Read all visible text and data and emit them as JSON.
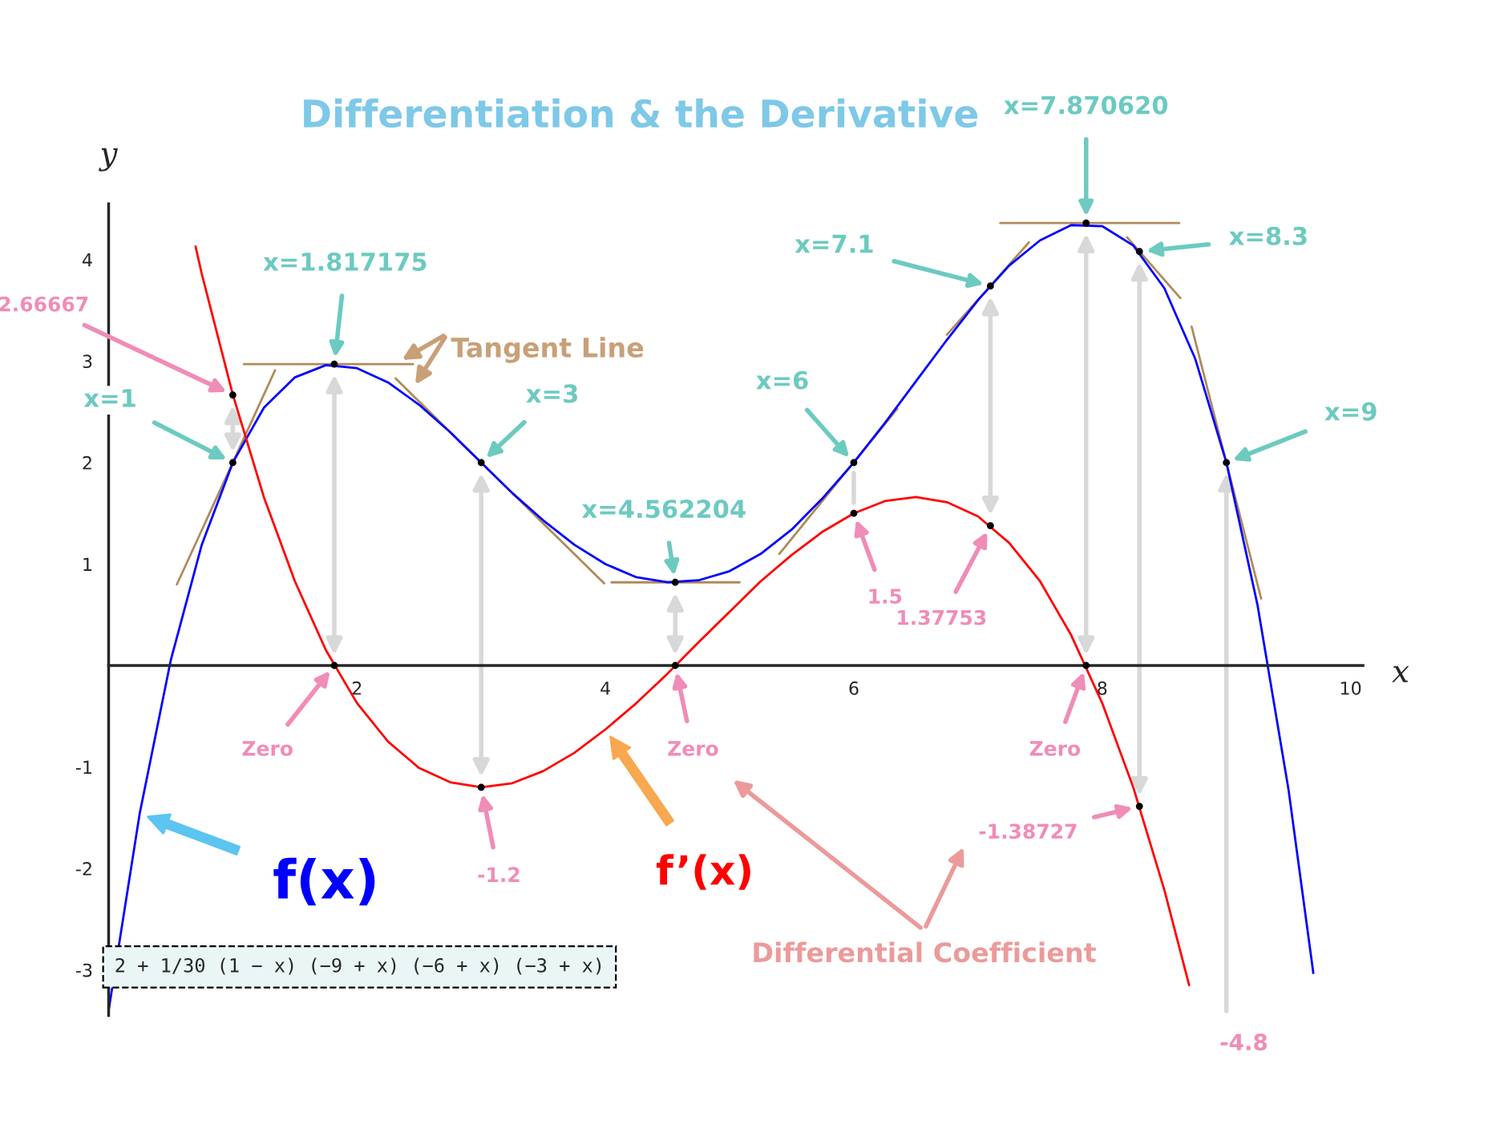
{
  "chart_data": {
    "type": "line",
    "title": "Differentiation & the Derivative",
    "xlabel": "x",
    "ylabel": "y",
    "xlim": [
      0,
      10.1
    ],
    "ylim": [
      -3.45,
      4.55
    ],
    "xticks": [
      2,
      4,
      6,
      8,
      10
    ],
    "yticks": [
      -3,
      -2,
      -1,
      1,
      2,
      3,
      4
    ],
    "grid": false,
    "legend": false,
    "series": [
      {
        "name": "f(x)",
        "color": "#0000ff",
        "x": [
          0,
          0.25,
          0.5,
          0.75,
          1,
          1.25,
          1.5,
          1.75,
          2,
          2.25,
          2.5,
          2.75,
          3,
          3.25,
          3.5,
          3.75,
          4,
          4.25,
          4.5,
          4.75,
          5,
          5.25,
          5.5,
          5.75,
          6,
          6.25,
          6.5,
          6.75,
          7,
          7.25,
          7.5,
          7.75,
          8,
          8.25,
          8.5,
          8.75,
          9,
          9.25,
          9.5,
          9.7
        ],
        "values": [
          -3.4,
          -1.46,
          0.05,
          1.19,
          2,
          2.54,
          2.84,
          2.96,
          2.93,
          2.79,
          2.57,
          2.3,
          2,
          1.7,
          1.43,
          1.19,
          1,
          0.87,
          0.82,
          0.84,
          0.93,
          1.1,
          1.34,
          1.65,
          2,
          2.39,
          2.8,
          3.21,
          3.6,
          3.94,
          4.19,
          4.34,
          4.33,
          4.14,
          3.72,
          3.02,
          2,
          0.6,
          -1.22,
          -3.03
        ]
      },
      {
        "name": "f’(x)",
        "color": "#ff0000",
        "x": [
          0.7,
          0.75,
          1,
          1.25,
          1.5,
          1.75,
          2,
          2.25,
          2.5,
          2.75,
          3,
          3.25,
          3.5,
          3.75,
          4,
          4.25,
          4.5,
          4.75,
          5,
          5.25,
          5.5,
          5.75,
          6,
          6.25,
          6.5,
          6.75,
          7,
          7.25,
          7.5,
          7.75,
          8,
          8.25,
          8.5,
          8.7
        ],
        "values": [
          4.13,
          3.86,
          2.67,
          1.66,
          0.83,
          0.15,
          -0.37,
          -0.75,
          -1.01,
          -1.15,
          -1.2,
          -1.16,
          -1.04,
          -0.86,
          -0.63,
          -0.37,
          -0.08,
          0.23,
          0.53,
          0.83,
          1.09,
          1.32,
          1.5,
          1.62,
          1.66,
          1.61,
          1.47,
          1.21,
          0.83,
          0.3,
          -0.37,
          -1.2,
          -2.21,
          -3.15
        ]
      },
      {
        "color": "#b08a5a",
        "x": [
          0.55,
          1.34
        ],
        "values": [
          0.8,
          2.91
        ]
      },
      {
        "color": "#b08a5a",
        "x": [
          1.09,
          2.45
        ],
        "values": [
          2.97,
          2.97
        ]
      },
      {
        "color": "#b08a5a",
        "x": [
          2.31,
          3.99
        ],
        "values": [
          2.83,
          0.81
        ]
      },
      {
        "color": "#b08a5a",
        "x": [
          4.05,
          5.08
        ],
        "values": [
          0.82,
          0.82
        ]
      },
      {
        "color": "#b08a5a",
        "x": [
          5.4,
          6.35
        ],
        "values": [
          1.1,
          2.53
        ]
      },
      {
        "color": "#b08a5a",
        "x": [
          6.75,
          7.41
        ],
        "values": [
          3.26,
          4.17
        ]
      },
      {
        "color": "#b08a5a",
        "x": [
          7.18,
          8.62
        ],
        "values": [
          4.36,
          4.36
        ]
      },
      {
        "color": "#b08a5a",
        "x": [
          8.2,
          8.63
        ],
        "values": [
          4.22,
          3.62
        ]
      },
      {
        "color": "#b08a5a",
        "x": [
          8.72,
          9.28
        ],
        "values": [
          3.34,
          0.66
        ]
      },
      {
        "type": "scatter",
        "color": "#000000",
        "marker": "circle",
        "x": [
          1,
          1.817175,
          3,
          4.562204,
          6,
          7.1,
          7.87062,
          8.3,
          9
        ],
        "values": [
          2,
          2.97,
          2,
          0.82,
          2,
          3.74,
          4.36,
          4.08,
          2
        ]
      },
      {
        "type": "scatter",
        "color": "#000000",
        "marker": "circle",
        "x": [
          1,
          1.817175,
          3,
          4.562204,
          6,
          7.1,
          7.87062,
          8.3
        ],
        "values": [
          2.66667,
          0,
          -1.2,
          0,
          1.5,
          1.37753,
          0,
          -1.38727
        ]
      }
    ],
    "annotations": [
      {
        "text": "x=1",
        "x": 1,
        "y": 2
      },
      {
        "text": "2.66667",
        "x": 1,
        "y": 2.66667
      },
      {
        "text": "x=1.817175",
        "x": 1.817175,
        "y": 2.97
      },
      {
        "text": "Zero",
        "x": 1.817175,
        "y": 0
      },
      {
        "text": "x=3",
        "x": 3,
        "y": 2
      },
      {
        "text": "-1.2",
        "x": 3,
        "y": -1.2
      },
      {
        "text": "x=4.562204",
        "x": 4.562204,
        "y": 0.82
      },
      {
        "text": "Zero",
        "x": 4.562204,
        "y": 0
      },
      {
        "text": "x=6",
        "x": 6,
        "y": 2
      },
      {
        "text": "1.5",
        "x": 6,
        "y": 1.5
      },
      {
        "text": "x=7.1",
        "x": 7.1,
        "y": 3.74
      },
      {
        "text": "1.37753",
        "x": 7.1,
        "y": 1.37753
      },
      {
        "text": "x=7.870620",
        "x": 7.87062,
        "y": 4.36
      },
      {
        "text": "Zero",
        "x": 7.87062,
        "y": 0
      },
      {
        "text": "x=8.3",
        "x": 8.3,
        "y": 4.08
      },
      {
        "text": "-1.38727",
        "x": 8.3,
        "y": -1.38727
      },
      {
        "text": "x=9",
        "x": 9,
        "y": 2
      },
      "-4.8",
      "Tangent Line",
      "Differential Coefficient",
      "2 + 1/30 (1 − x) (−9 + x) (−6 + x) (−3 + x)"
    ]
  }
}
